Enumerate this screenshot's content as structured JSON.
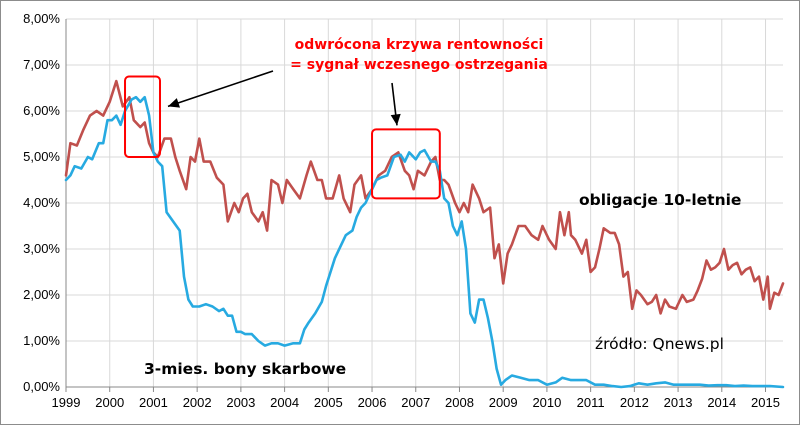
{
  "chart_data": {
    "type": "line",
    "xlim": [
      1999,
      2015.4
    ],
    "ylim": [
      0,
      8
    ],
    "x_ticks": [
      1999,
      2000,
      2001,
      2002,
      2003,
      2004,
      2005,
      2006,
      2007,
      2008,
      2009,
      2010,
      2011,
      2012,
      2013,
      2014,
      2015
    ],
    "y_ticks": [
      {
        "value": 0,
        "label": "0,00%"
      },
      {
        "value": 1,
        "label": "1,00%"
      },
      {
        "value": 2,
        "label": "2,00%"
      },
      {
        "value": 3,
        "label": "3,00%"
      },
      {
        "value": 4,
        "label": "4,00%"
      },
      {
        "value": 5,
        "label": "5,00%"
      },
      {
        "value": 6,
        "label": "6,00%"
      },
      {
        "value": 7,
        "label": "7,00%"
      },
      {
        "value": 8,
        "label": "8,00%"
      }
    ],
    "grid": true,
    "series": [
      {
        "name": "obligacje 10-letnie",
        "color": "#c0504d",
        "points": [
          [
            1999.0,
            4.6
          ],
          [
            1999.1,
            5.3
          ],
          [
            1999.25,
            5.25
          ],
          [
            1999.4,
            5.6
          ],
          [
            1999.55,
            5.9
          ],
          [
            1999.7,
            6.0
          ],
          [
            1999.85,
            5.9
          ],
          [
            2000.0,
            6.2
          ],
          [
            2000.15,
            6.65
          ],
          [
            2000.3,
            6.1
          ],
          [
            2000.45,
            6.3
          ],
          [
            2000.55,
            5.8
          ],
          [
            2000.7,
            5.65
          ],
          [
            2000.8,
            5.75
          ],
          [
            2000.9,
            5.3
          ],
          [
            2001.0,
            5.1
          ],
          [
            2001.1,
            5.0
          ],
          [
            2001.25,
            5.4
          ],
          [
            2001.4,
            5.4
          ],
          [
            2001.5,
            5.0
          ],
          [
            2001.6,
            4.7
          ],
          [
            2001.75,
            4.3
          ],
          [
            2001.85,
            5.0
          ],
          [
            2001.95,
            4.9
          ],
          [
            2002.05,
            5.4
          ],
          [
            2002.15,
            4.9
          ],
          [
            2002.3,
            4.9
          ],
          [
            2002.45,
            4.55
          ],
          [
            2002.6,
            4.4
          ],
          [
            2002.7,
            3.6
          ],
          [
            2002.85,
            4.0
          ],
          [
            2002.95,
            3.8
          ],
          [
            2003.05,
            4.1
          ],
          [
            2003.15,
            4.2
          ],
          [
            2003.25,
            3.8
          ],
          [
            2003.4,
            3.6
          ],
          [
            2003.5,
            3.8
          ],
          [
            2003.6,
            3.4
          ],
          [
            2003.7,
            4.5
          ],
          [
            2003.85,
            4.4
          ],
          [
            2003.95,
            4.0
          ],
          [
            2004.05,
            4.5
          ],
          [
            2004.2,
            4.3
          ],
          [
            2004.35,
            4.1
          ],
          [
            2004.5,
            4.6
          ],
          [
            2004.6,
            4.9
          ],
          [
            2004.75,
            4.5
          ],
          [
            2004.85,
            4.5
          ],
          [
            2004.95,
            4.1
          ],
          [
            2005.1,
            4.1
          ],
          [
            2005.25,
            4.6
          ],
          [
            2005.35,
            4.1
          ],
          [
            2005.5,
            3.8
          ],
          [
            2005.6,
            4.4
          ],
          [
            2005.75,
            4.6
          ],
          [
            2005.85,
            4.1
          ],
          [
            2006.0,
            4.3
          ],
          [
            2006.15,
            4.6
          ],
          [
            2006.3,
            4.7
          ],
          [
            2006.45,
            5.0
          ],
          [
            2006.6,
            5.1
          ],
          [
            2006.75,
            4.7
          ],
          [
            2006.85,
            4.6
          ],
          [
            2006.95,
            4.3
          ],
          [
            2007.05,
            4.7
          ],
          [
            2007.2,
            4.6
          ],
          [
            2007.35,
            4.9
          ],
          [
            2007.45,
            5.0
          ],
          [
            2007.55,
            4.5
          ],
          [
            2007.65,
            4.5
          ],
          [
            2007.75,
            4.4
          ],
          [
            2007.9,
            4.0
          ],
          [
            2008.0,
            3.8
          ],
          [
            2008.1,
            4.0
          ],
          [
            2008.2,
            3.8
          ],
          [
            2008.3,
            4.4
          ],
          [
            2008.45,
            4.1
          ],
          [
            2008.55,
            3.8
          ],
          [
            2008.7,
            3.9
          ],
          [
            2008.8,
            2.8
          ],
          [
            2008.9,
            3.1
          ],
          [
            2009.0,
            2.25
          ],
          [
            2009.1,
            2.9
          ],
          [
            2009.2,
            3.1
          ],
          [
            2009.35,
            3.5
          ],
          [
            2009.5,
            3.5
          ],
          [
            2009.65,
            3.3
          ],
          [
            2009.8,
            3.2
          ],
          [
            2009.9,
            3.5
          ],
          [
            2010.05,
            3.2
          ],
          [
            2010.2,
            3.0
          ],
          [
            2010.3,
            3.8
          ],
          [
            2010.4,
            3.3
          ],
          [
            2010.5,
            3.8
          ],
          [
            2010.55,
            3.3
          ],
          [
            2010.65,
            3.2
          ],
          [
            2010.8,
            2.9
          ],
          [
            2010.9,
            3.2
          ],
          [
            2011.0,
            2.5
          ],
          [
            2011.1,
            2.6
          ],
          [
            2011.2,
            3.0
          ],
          [
            2011.3,
            3.45
          ],
          [
            2011.45,
            3.35
          ],
          [
            2011.55,
            3.35
          ],
          [
            2011.65,
            3.1
          ],
          [
            2011.75,
            2.4
          ],
          [
            2011.85,
            2.5
          ],
          [
            2011.95,
            1.7
          ],
          [
            2012.05,
            2.1
          ],
          [
            2012.15,
            2.0
          ],
          [
            2012.3,
            1.8
          ],
          [
            2012.4,
            1.85
          ],
          [
            2012.5,
            2.0
          ],
          [
            2012.6,
            1.6
          ],
          [
            2012.7,
            1.9
          ],
          [
            2012.8,
            1.75
          ],
          [
            2012.95,
            1.7
          ],
          [
            2013.1,
            2.0
          ],
          [
            2013.2,
            1.85
          ],
          [
            2013.35,
            1.9
          ],
          [
            2013.45,
            2.1
          ],
          [
            2013.55,
            2.35
          ],
          [
            2013.65,
            2.75
          ],
          [
            2013.75,
            2.55
          ],
          [
            2013.85,
            2.6
          ],
          [
            2013.95,
            2.7
          ],
          [
            2014.05,
            3.0
          ],
          [
            2014.15,
            2.55
          ],
          [
            2014.25,
            2.65
          ],
          [
            2014.35,
            2.7
          ],
          [
            2014.45,
            2.45
          ],
          [
            2014.55,
            2.55
          ],
          [
            2014.65,
            2.6
          ],
          [
            2014.75,
            2.3
          ],
          [
            2014.85,
            2.4
          ],
          [
            2014.95,
            1.9
          ],
          [
            2015.05,
            2.4
          ],
          [
            2015.1,
            1.7
          ],
          [
            2015.2,
            2.05
          ],
          [
            2015.3,
            2.0
          ],
          [
            2015.4,
            2.25
          ]
        ]
      },
      {
        "name": "3-mies. bony skarbowe",
        "color": "#27aae1",
        "points": [
          [
            1999.0,
            4.5
          ],
          [
            1999.1,
            4.6
          ],
          [
            1999.2,
            4.8
          ],
          [
            1999.35,
            4.75
          ],
          [
            1999.5,
            5.0
          ],
          [
            1999.6,
            4.95
          ],
          [
            1999.75,
            5.3
          ],
          [
            1999.85,
            5.3
          ],
          [
            1999.95,
            5.8
          ],
          [
            2000.05,
            5.8
          ],
          [
            2000.15,
            5.9
          ],
          [
            2000.25,
            5.7
          ],
          [
            2000.35,
            6.0
          ],
          [
            2000.5,
            6.25
          ],
          [
            2000.6,
            6.3
          ],
          [
            2000.7,
            6.2
          ],
          [
            2000.8,
            6.3
          ],
          [
            2000.9,
            5.9
          ],
          [
            2001.0,
            5.1
          ],
          [
            2001.1,
            4.9
          ],
          [
            2001.2,
            4.8
          ],
          [
            2001.3,
            3.8
          ],
          [
            2001.45,
            3.6
          ],
          [
            2001.6,
            3.4
          ],
          [
            2001.7,
            2.4
          ],
          [
            2001.8,
            1.9
          ],
          [
            2001.9,
            1.75
          ],
          [
            2002.05,
            1.75
          ],
          [
            2002.2,
            1.8
          ],
          [
            2002.35,
            1.75
          ],
          [
            2002.5,
            1.65
          ],
          [
            2002.6,
            1.7
          ],
          [
            2002.7,
            1.55
          ],
          [
            2002.8,
            1.55
          ],
          [
            2002.9,
            1.2
          ],
          [
            2003.0,
            1.2
          ],
          [
            2003.1,
            1.15
          ],
          [
            2003.25,
            1.15
          ],
          [
            2003.4,
            1.0
          ],
          [
            2003.55,
            0.9
          ],
          [
            2003.7,
            0.95
          ],
          [
            2003.85,
            0.95
          ],
          [
            2004.0,
            0.9
          ],
          [
            2004.2,
            0.95
          ],
          [
            2004.35,
            0.95
          ],
          [
            2004.45,
            1.25
          ],
          [
            2004.55,
            1.4
          ],
          [
            2004.7,
            1.6
          ],
          [
            2004.85,
            1.85
          ],
          [
            2004.95,
            2.2
          ],
          [
            2005.05,
            2.5
          ],
          [
            2005.15,
            2.8
          ],
          [
            2005.3,
            3.1
          ],
          [
            2005.4,
            3.3
          ],
          [
            2005.55,
            3.4
          ],
          [
            2005.65,
            3.7
          ],
          [
            2005.75,
            3.9
          ],
          [
            2005.85,
            4.0
          ],
          [
            2006.0,
            4.3
          ],
          [
            2006.1,
            4.5
          ],
          [
            2006.2,
            4.55
          ],
          [
            2006.35,
            4.6
          ],
          [
            2006.5,
            5.0
          ],
          [
            2006.65,
            5.05
          ],
          [
            2006.75,
            4.9
          ],
          [
            2006.85,
            5.1
          ],
          [
            2007.0,
            4.95
          ],
          [
            2007.1,
            5.1
          ],
          [
            2007.2,
            5.15
          ],
          [
            2007.35,
            4.9
          ],
          [
            2007.45,
            4.9
          ],
          [
            2007.55,
            4.7
          ],
          [
            2007.65,
            4.1
          ],
          [
            2007.75,
            4.0
          ],
          [
            2007.85,
            3.5
          ],
          [
            2007.95,
            3.3
          ],
          [
            2008.05,
            3.6
          ],
          [
            2008.15,
            3.0
          ],
          [
            2008.25,
            1.6
          ],
          [
            2008.35,
            1.4
          ],
          [
            2008.45,
            1.9
          ],
          [
            2008.55,
            1.9
          ],
          [
            2008.65,
            1.5
          ],
          [
            2008.75,
            1.0
          ],
          [
            2008.85,
            0.4
          ],
          [
            2008.95,
            0.05
          ],
          [
            2009.05,
            0.15
          ],
          [
            2009.2,
            0.25
          ],
          [
            2009.4,
            0.2
          ],
          [
            2009.6,
            0.15
          ],
          [
            2009.8,
            0.15
          ],
          [
            2010.0,
            0.05
          ],
          [
            2010.2,
            0.1
          ],
          [
            2010.35,
            0.2
          ],
          [
            2010.55,
            0.15
          ],
          [
            2010.7,
            0.15
          ],
          [
            2010.9,
            0.15
          ],
          [
            2011.1,
            0.05
          ],
          [
            2011.3,
            0.05
          ],
          [
            2011.5,
            0.02
          ],
          [
            2011.7,
            0.0
          ],
          [
            2011.9,
            0.02
          ],
          [
            2012.1,
            0.08
          ],
          [
            2012.3,
            0.05
          ],
          [
            2012.5,
            0.08
          ],
          [
            2012.7,
            0.1
          ],
          [
            2012.9,
            0.05
          ],
          [
            2013.1,
            0.05
          ],
          [
            2013.3,
            0.05
          ],
          [
            2013.5,
            0.05
          ],
          [
            2013.7,
            0.03
          ],
          [
            2013.9,
            0.04
          ],
          [
            2014.1,
            0.04
          ],
          [
            2014.3,
            0.02
          ],
          [
            2014.5,
            0.03
          ],
          [
            2014.7,
            0.02
          ],
          [
            2014.9,
            0.02
          ],
          [
            2015.1,
            0.02
          ],
          [
            2015.4,
            0.0
          ]
        ]
      }
    ],
    "highlight_boxes": [
      {
        "x_range": [
          2000.35,
          2001.15
        ],
        "y_range": [
          5.0,
          6.75
        ]
      },
      {
        "x_range": [
          2006.0,
          2007.55
        ],
        "y_range": [
          4.1,
          5.6
        ]
      }
    ],
    "annotations": {
      "inversion_line1": "odwrócona  krzywa rentowności",
      "inversion_line2": "= sygnał wczesnego ostrzegania",
      "bonds_label": "obligacje 10-letnie",
      "bills_label": "3-mies. bony skarbowe",
      "source": "źródło: Qnews.pl"
    }
  }
}
